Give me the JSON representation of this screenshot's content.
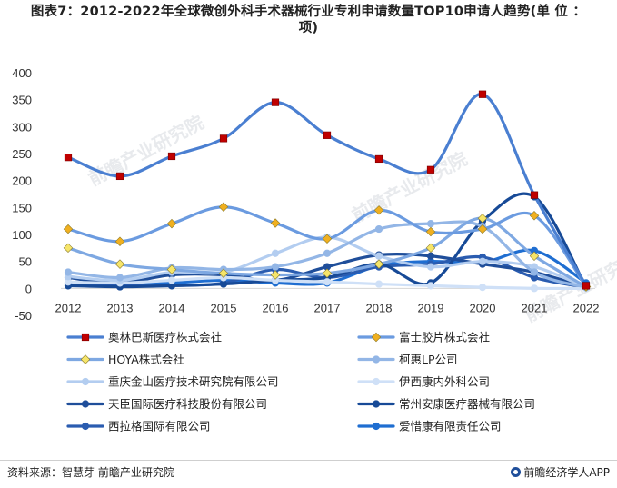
{
  "title_line1": "图表7：2012-2022年全球微创外科手术器械行业专利申请数量TOP10申请人趋势(单 位 ：",
  "title_line2": "项)",
  "source": "资料来源：智慧芽 前瞻产业研究院",
  "brand": "前瞻经济学人APP",
  "watermark": "前瞻产业研究院",
  "chart_data": {
    "type": "line",
    "x": [
      2012,
      2013,
      2014,
      2015,
      2016,
      2017,
      2018,
      2019,
      2020,
      2021,
      2022
    ],
    "ylim": [
      -50,
      400
    ],
    "yticks": [
      -50,
      0,
      50,
      100,
      150,
      200,
      250,
      300,
      350,
      400
    ],
    "legend_position": "bottom",
    "series": [
      {
        "name": "奥林巴斯医疗株式会社",
        "color": "#4a7fd1",
        "marker": "square",
        "marker_color": "#c00000",
        "values": [
          243,
          208,
          245,
          278,
          345,
          284,
          240,
          220,
          360,
          173,
          5
        ]
      },
      {
        "name": "富士胶片株式会社",
        "color": "#6b9be0",
        "marker": "diamond",
        "marker_color": "#f0b020",
        "values": [
          110,
          87,
          120,
          151,
          121,
          92,
          145,
          105,
          110,
          135,
          3
        ]
      },
      {
        "name": "HOYA株式会社",
        "color": "#7ea8e2",
        "marker": "diamond",
        "marker_color": "#f6e56a",
        "values": [
          75,
          45,
          35,
          28,
          25,
          28,
          45,
          75,
          130,
          60,
          3
        ]
      },
      {
        "name": "柯惠LP公司",
        "color": "#93b6e6",
        "marker": "circle",
        "marker_color": "#93b6e6",
        "values": [
          30,
          20,
          38,
          35,
          40,
          65,
          110,
          120,
          115,
          30,
          2
        ]
      },
      {
        "name": "重庆金山医疗技术研究院有限公司",
        "color": "#b3cdf0",
        "marker": "circle",
        "marker_color": "#b3cdf0",
        "values": [
          22,
          15,
          30,
          30,
          65,
          95,
          60,
          40,
          50,
          40,
          2
        ]
      },
      {
        "name": "伊西康内外科公司",
        "color": "#cfe0f7",
        "marker": "circle",
        "marker_color": "#cfe0f7",
        "values": [
          12,
          10,
          15,
          20,
          15,
          12,
          8,
          5,
          2,
          0,
          0
        ]
      },
      {
        "name": "天臣国际医疗科技股份有限公司",
        "color": "#1f4e9a",
        "marker": "circle",
        "marker_color": "#1f4e9a",
        "values": [
          20,
          10,
          25,
          25,
          15,
          40,
          62,
          60,
          45,
          30,
          2
        ]
      },
      {
        "name": "常州安康医疗器械有限公司",
        "color": "#174a97",
        "marker": "circle",
        "marker_color": "#174a97",
        "values": [
          5,
          3,
          5,
          8,
          15,
          20,
          45,
          10,
          125,
          170,
          2
        ]
      },
      {
        "name": "西拉格国际有限公司",
        "color": "#2a5cb0",
        "marker": "circle",
        "marker_color": "#2a5cb0",
        "values": [
          10,
          5,
          5,
          10,
          35,
          20,
          40,
          45,
          58,
          20,
          2
        ]
      },
      {
        "name": "爱惜康有限责任公司",
        "color": "#1f6ed1",
        "marker": "circle",
        "marker_color": "#1f6ed1",
        "values": [
          5,
          5,
          10,
          15,
          10,
          10,
          42,
          50,
          48,
          70,
          10
        ]
      }
    ]
  }
}
